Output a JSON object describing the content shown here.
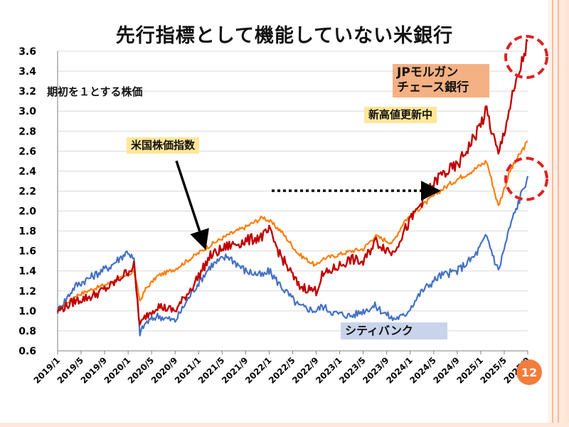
{
  "title": "先行指標として機能していない米銀行",
  "subtitle": "期初を１とする株価",
  "labels": {
    "sp500": "米国株価指数",
    "jpm": "JPモルガン\nチェース銀行",
    "jpm_note": "新高値更新中",
    "citi": "シティバンク"
  },
  "page_number": "12",
  "colors": {
    "sp500": "#ff7f0e",
    "jpm": "#c00000",
    "citi": "#4472c4",
    "label_sp500_bg": "#ffe699",
    "label_jpm_bg": "#f4b183",
    "label_note_bg": "#ffe699",
    "label_citi_bg": "#c9d4ea",
    "circle": "#e02020"
  },
  "chart_data": {
    "type": "line",
    "title": "先行指標として機能していない米銀行",
    "ylabel": "期初を１とする株価",
    "ylim": [
      0.6,
      3.6
    ],
    "y_ticks": [
      "0.6",
      "0.8",
      "1.0",
      "1.2",
      "1.4",
      "1.6",
      "1.8",
      "2.0",
      "2.2",
      "2.4",
      "2.6",
      "2.8",
      "3.0",
      "3.2",
      "3.4",
      "3.6"
    ],
    "x_ticks": [
      "2019/1",
      "2019/5",
      "2019/9",
      "2020/1",
      "2020/5",
      "2020/9",
      "2021/1",
      "2021/5",
      "2021/9",
      "2022/1",
      "2022/5",
      "2022/9",
      "2023/1",
      "2023/5",
      "2023/9",
      "2024/1",
      "2024/5",
      "2024/9",
      "2025/1",
      "2025/5",
      "2025/9"
    ],
    "x": [
      "2019/1",
      "2019/4",
      "2019/7",
      "2019/10",
      "2020/1",
      "2020/2",
      "2020/3",
      "2020/4",
      "2020/6",
      "2020/9",
      "2020/12",
      "2021/3",
      "2021/6",
      "2021/9",
      "2021/12",
      "2022/1",
      "2022/3",
      "2022/6",
      "2022/9",
      "2022/10",
      "2022/12",
      "2023/3",
      "2023/5",
      "2023/7",
      "2023/10",
      "2023/12",
      "2024/3",
      "2024/6",
      "2024/9",
      "2024/12",
      "2025/2",
      "2025/4",
      "2025/6",
      "2025/9"
    ],
    "series": [
      {
        "name": "米国株価指数",
        "key": "sp500",
        "values": [
          1.0,
          1.15,
          1.22,
          1.28,
          1.36,
          1.4,
          1.1,
          1.22,
          1.35,
          1.42,
          1.54,
          1.66,
          1.76,
          1.84,
          1.94,
          1.9,
          1.8,
          1.57,
          1.45,
          1.52,
          1.55,
          1.6,
          1.62,
          1.75,
          1.68,
          1.9,
          2.05,
          2.2,
          2.32,
          2.42,
          2.5,
          2.05,
          2.4,
          2.7
        ]
      },
      {
        "name": "JPモルガン チェース銀行",
        "key": "jpm",
        "values": [
          1.0,
          1.1,
          1.15,
          1.25,
          1.4,
          1.45,
          0.85,
          0.95,
          1.05,
          1.0,
          1.25,
          1.55,
          1.65,
          1.7,
          1.75,
          1.8,
          1.55,
          1.25,
          1.2,
          1.35,
          1.42,
          1.52,
          1.48,
          1.7,
          1.58,
          1.8,
          2.1,
          2.35,
          2.45,
          2.75,
          3.0,
          2.55,
          3.05,
          3.7
        ]
      },
      {
        "name": "シティバンク",
        "key": "citi",
        "values": [
          1.0,
          1.25,
          1.35,
          1.45,
          1.6,
          1.5,
          0.78,
          0.88,
          0.95,
          0.9,
          1.2,
          1.45,
          1.55,
          1.4,
          1.35,
          1.4,
          1.25,
          1.05,
          1.0,
          1.05,
          0.98,
          0.95,
          1.0,
          1.05,
          0.92,
          0.95,
          1.2,
          1.35,
          1.4,
          1.55,
          1.75,
          1.4,
          1.85,
          2.35
        ]
      }
    ],
    "annotations": [
      "米国株価指数",
      "JPモルガン チェース銀行",
      "新高値更新中",
      "シティバンク"
    ]
  }
}
